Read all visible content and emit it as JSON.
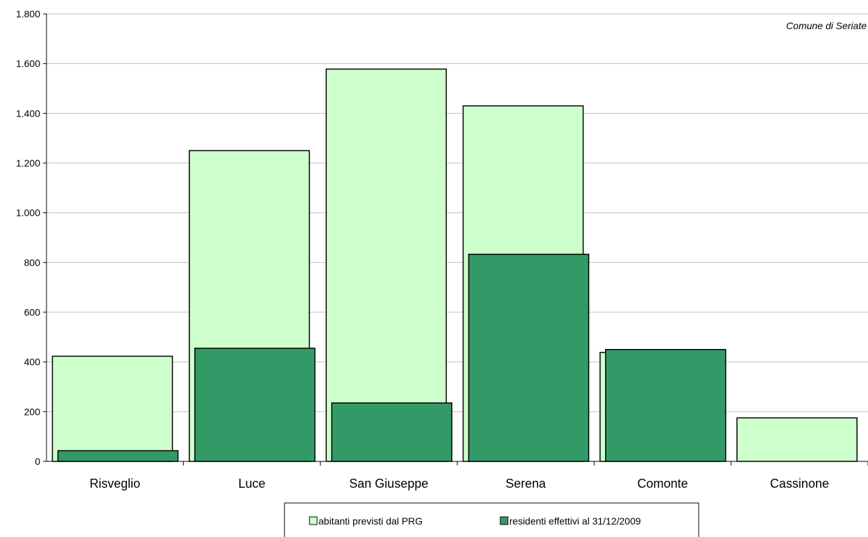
{
  "chart_data": {
    "type": "bar",
    "annotation": "Comune di Seriate",
    "categories": [
      "Risveglio",
      "Luce",
      "San Giuseppe",
      "Serena",
      "Comonte",
      "Cassinone"
    ],
    "series": [
      {
        "name": "abitanti previsti dal PRG",
        "color": "#ccffcc",
        "values": [
          423,
          1250,
          1578,
          1430,
          438,
          175
        ]
      },
      {
        "name": "residenti effettivi al 31/12/2009",
        "color": "#339966",
        "values": [
          43,
          455,
          235,
          833,
          450,
          0
        ]
      }
    ],
    "ylim": [
      0,
      1800
    ],
    "yticks": [
      0,
      200,
      400,
      600,
      800,
      1000,
      1200,
      1400,
      1600,
      1800
    ],
    "ytick_labels": [
      "0",
      "200",
      "400",
      "600",
      "800",
      "1.000",
      "1.200",
      "1.400",
      "1.600",
      "1.800"
    ],
    "grid": true,
    "legend_position": "bottom"
  }
}
